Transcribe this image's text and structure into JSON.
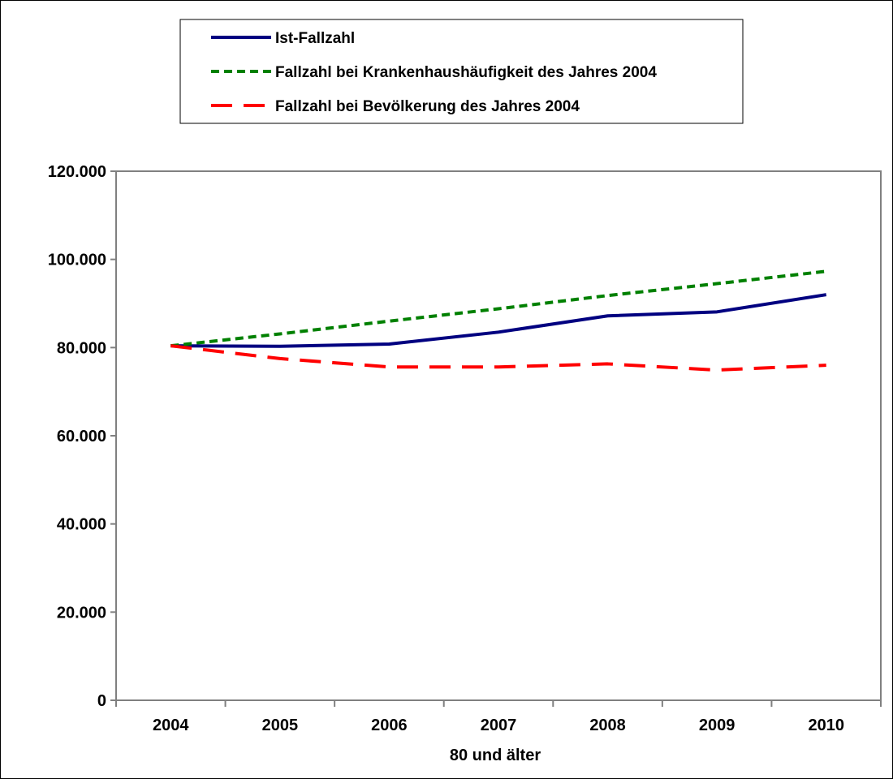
{
  "chart_data": {
    "type": "line",
    "categories": [
      "2004",
      "2005",
      "2006",
      "2007",
      "2008",
      "2009",
      "2010"
    ],
    "series": [
      {
        "name": "Ist-Fallzahl",
        "values": [
          80400,
          80300,
          80800,
          83500,
          87200,
          88100,
          92000
        ],
        "color": "#000080",
        "style": "solid"
      },
      {
        "name": "Fallzahl bei Krankenhaushäufigkeit des Jahres 2004",
        "values": [
          80400,
          83100,
          86000,
          88800,
          91800,
          94500,
          97300
        ],
        "color": "#008000",
        "style": "short-dash"
      },
      {
        "name": "Fallzahl bei Bevölkerung des Jahres 2004",
        "values": [
          80400,
          77500,
          75600,
          75600,
          76300,
          74900,
          76000
        ],
        "color": "#FF0000",
        "style": "long-dash"
      }
    ],
    "title": "",
    "xlabel": "80 und älter",
    "ylabel": "",
    "ylim": [
      0,
      120000
    ],
    "yticks": [
      0,
      20000,
      40000,
      60000,
      80000,
      100000,
      120000
    ],
    "ytick_labels": [
      "0",
      "20.000",
      "40.000",
      "60.000",
      "80.000",
      "100.000",
      "120.000"
    ],
    "grid": false,
    "legend_position": "top"
  }
}
